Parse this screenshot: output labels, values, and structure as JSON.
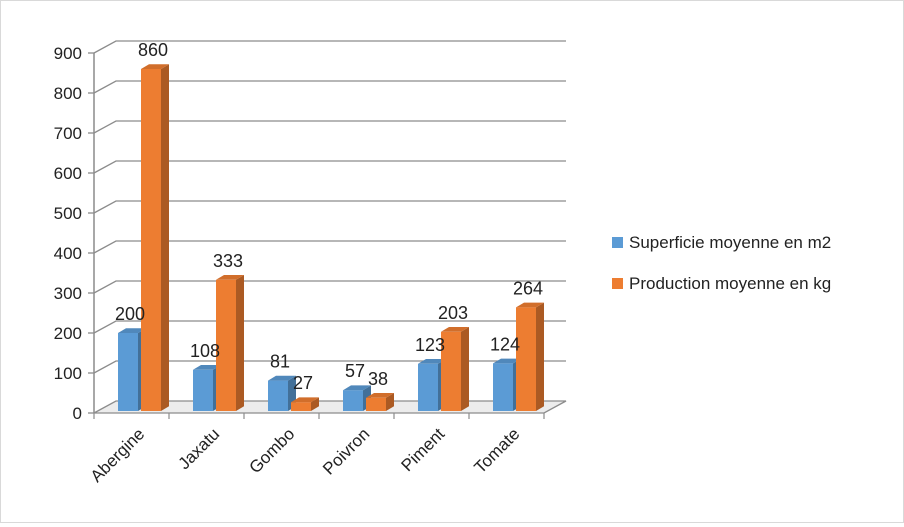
{
  "chart_data": {
    "type": "bar",
    "categories": [
      "Abergine",
      "Jaxatu",
      "Gombo",
      "Poivron",
      "Piment",
      "Tomate"
    ],
    "series": [
      {
        "name": "Superficie moyenne en m2",
        "values": [
          200,
          108,
          81,
          57,
          123,
          124
        ],
        "color": "#5b9bd5"
      },
      {
        "name": "Production moyenne en kg",
        "values": [
          860,
          333,
          27,
          38,
          203,
          264
        ],
        "color": "#ed7d31"
      }
    ],
    "ylim": [
      0,
      900
    ],
    "yticks": [
      "0",
      "100",
      "200",
      "300",
      "400",
      "500",
      "600",
      "700",
      "800",
      "900"
    ],
    "grid": true,
    "legend_position": "right",
    "style": "3d-clustered-column"
  }
}
